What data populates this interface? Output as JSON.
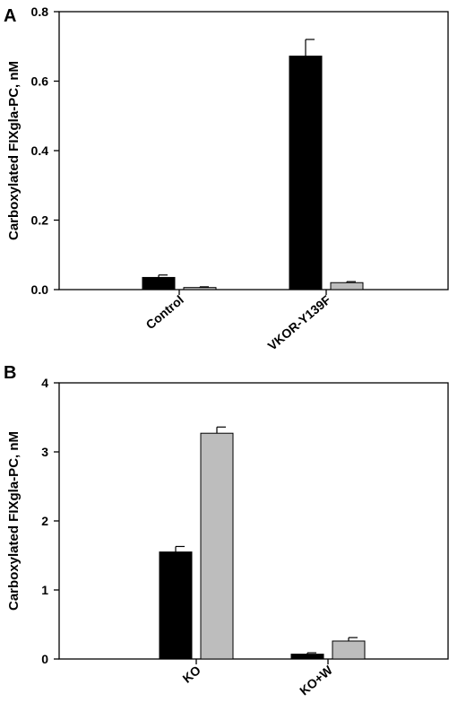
{
  "chart_data": [
    {
      "panel": "A",
      "type": "bar",
      "title": "",
      "xlabel": "",
      "ylabel": "Carboxylated FIXgla-PC, nM",
      "ylim": [
        0,
        0.8
      ],
      "yticks": [
        "0.0",
        "0.2",
        "0.4",
        "0.6",
        "0.8"
      ],
      "ytick_values": [
        0,
        0.2,
        0.4,
        0.6,
        0.8
      ],
      "categories": [
        "Control",
        "VKOR-Y139F"
      ],
      "series": [
        {
          "color": "#000000",
          "values": [
            0.035,
            0.672
          ],
          "errors": [
            0.007,
            0.048
          ]
        },
        {
          "color": "#bdbdbd",
          "values": [
            0.006,
            0.02
          ],
          "errors": [
            0.002,
            0.003
          ]
        }
      ],
      "grid": false,
      "legend": "none"
    },
    {
      "panel": "B",
      "type": "bar",
      "title": "",
      "xlabel": "",
      "ylabel": "Carboxylated FIXgla-PC, nM",
      "ylim": [
        0,
        4
      ],
      "yticks": [
        "0",
        "1",
        "2",
        "3",
        "4"
      ],
      "ytick_values": [
        0,
        1,
        2,
        3,
        4
      ],
      "categories": [
        "KO",
        "KO+W"
      ],
      "series": [
        {
          "color": "#000000",
          "values": [
            1.55,
            0.07
          ],
          "errors": [
            0.08,
            0.02
          ]
        },
        {
          "color": "#bdbdbd",
          "values": [
            3.27,
            0.26
          ],
          "errors": [
            0.09,
            0.05
          ]
        }
      ],
      "grid": false,
      "legend": "none"
    }
  ]
}
